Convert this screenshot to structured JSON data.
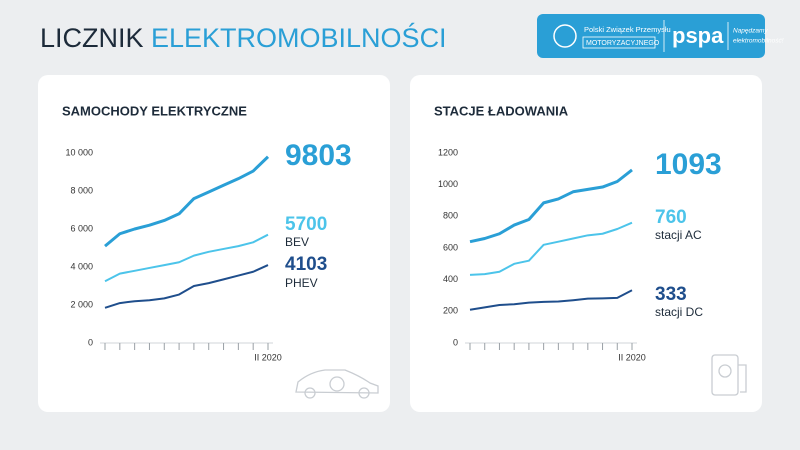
{
  "header": {
    "title_a": "LICZNIK",
    "title_b": "ELEKTROMOBILNOŚCI",
    "logo_line1": "Polski Związek Przemysłu",
    "logo_line2": "MOTORYZACYJNEGO",
    "logo_brand": "pspa",
    "logo_slogan_1": "Napędzamy",
    "logo_slogan_2": "elektromobilność!"
  },
  "chart_data": [
    {
      "type": "line",
      "title": "SAMOCHODY ELEKTRYCZNE",
      "categories": [
        null,
        null,
        null,
        null,
        null,
        null,
        null,
        null,
        null,
        null,
        null,
        "II 2020"
      ],
      "series": [
        {
          "color": "#2a9fd6",
          "values": [
            5100,
            5750,
            6000,
            6200,
            6450,
            6800,
            7600,
            7950,
            8300,
            8650,
            9050,
            9803
          ]
        },
        {
          "name": "BEV",
          "color": "#4cc4ea",
          "values": [
            3250,
            3650,
            3800,
            3950,
            4100,
            4250,
            4600,
            4800,
            4950,
            5100,
            5300,
            5700
          ]
        },
        {
          "name": "PHEV",
          "color": "#1f4e8c",
          "values": [
            1850,
            2100,
            2200,
            2250,
            2350,
            2550,
            3000,
            3150,
            3350,
            3550,
            3750,
            4103
          ]
        }
      ],
      "ylim": [
        0,
        10000
      ],
      "yticks": [
        0,
        {
          "value": 2000,
          "label": "2 000"
        },
        {
          "value": 4000,
          "label": "4 000"
        },
        {
          "value": 6000,
          "label": "6 000"
        },
        {
          "value": 8000,
          "label": "8 000"
        },
        {
          "value": 10000,
          "label": "10 000"
        }
      ],
      "grid": false
    },
    {
      "type": "line",
      "title": "STACJE ŁADOWANIA",
      "categories": [
        null,
        null,
        null,
        null,
        null,
        null,
        null,
        null,
        null,
        null,
        null,
        "II 2020"
      ],
      "series": [
        {
          "color": "#2a9fd6",
          "values": [
            640,
            660,
            690,
            745,
            780,
            885,
            910,
            955,
            970,
            985,
            1020,
            1093
          ]
        },
        {
          "name": "stacji AC",
          "color": "#4cc4ea",
          "values": [
            430,
            435,
            450,
            500,
            520,
            620,
            640,
            660,
            680,
            690,
            720,
            760
          ]
        },
        {
          "name": "stacji DC",
          "color": "#1f4e8c",
          "values": [
            210,
            225,
            240,
            245,
            255,
            260,
            262,
            270,
            280,
            282,
            285,
            333
          ]
        }
      ],
      "ylim": [
        0,
        1200
      ],
      "yticks": [
        0,
        200,
        400,
        600,
        800,
        1000,
        1200
      ],
      "grid": false
    }
  ]
}
